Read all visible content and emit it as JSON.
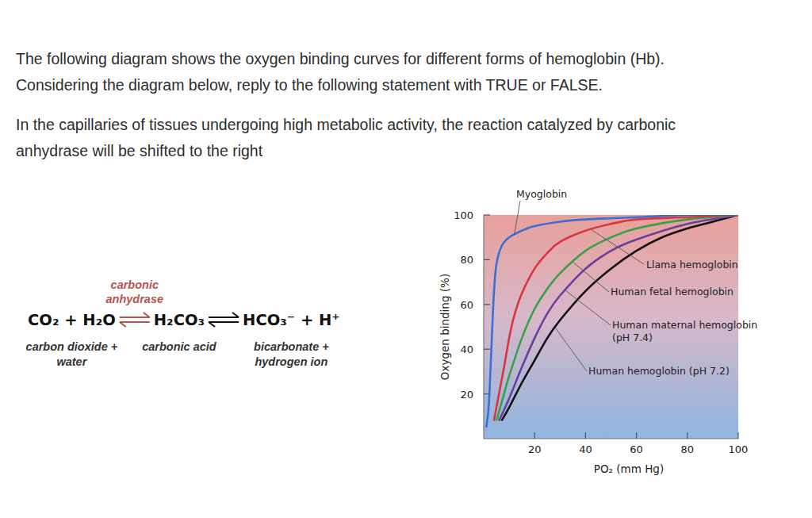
{
  "question": {
    "paragraphs": [
      [
        "The following diagram shows the oxygen binding curves for different forms of hemoglobin (Hb).",
        "Considering the diagram below, reply to the following statement with TRUE or FALSE."
      ],
      [
        "In the capillaries of tissues undergoing high metabolic activity, the reaction catalyzed by carbonic",
        "anhydrase will be shifted to the right"
      ]
    ]
  },
  "equation": {
    "enzyme_lines": [
      "carbonic",
      "anhydrase"
    ],
    "terms": [
      {
        "formula": "CO₂ + H₂O",
        "label_lines": [
          "carbon dioxide +",
          "water"
        ]
      },
      {
        "formula": "H₂CO₃",
        "label_lines": [
          "carbonic acid"
        ]
      },
      {
        "formula": "HCO₃⁻ + H⁺",
        "label_lines": [
          "bicarbonate +",
          "hydrogen ion"
        ]
      }
    ]
  },
  "chart_data": {
    "type": "line",
    "x_label": "PO₂ (mm Hg)",
    "y_label": "Oxygen binding (%)",
    "xlim": [
      0,
      100
    ],
    "ylim": [
      0,
      100
    ],
    "xticks": [
      20,
      40,
      60,
      80,
      100
    ],
    "yticks": [
      20,
      40,
      60,
      80,
      100
    ],
    "grid": false,
    "series": [
      {
        "name": "Myoglobin",
        "color": "#3b6fd4",
        "x": [
          1,
          2,
          3,
          4,
          5,
          7,
          10,
          15,
          20,
          30,
          40,
          60,
          80,
          100
        ],
        "values": [
          5,
          15,
          40,
          65,
          78,
          86,
          90,
          93,
          95,
          97,
          98,
          99,
          100,
          100
        ]
      },
      {
        "name": "Llama hemoglobin",
        "color": "#d9363e",
        "x": [
          4,
          6,
          8,
          10,
          12,
          15,
          20,
          25,
          30,
          40,
          50,
          60,
          80,
          100
        ],
        "values": [
          8,
          20,
          32,
          45,
          55,
          65,
          76,
          83,
          88,
          93,
          96,
          98,
          99,
          100
        ]
      },
      {
        "name": "Human fetal hemoglobin",
        "color": "#3aa04a",
        "x": [
          5,
          8,
          10,
          15,
          20,
          25,
          30,
          40,
          50,
          60,
          80,
          100
        ],
        "values": [
          8,
          20,
          28,
          45,
          58,
          67,
          74,
          84,
          90,
          94,
          98,
          100
        ]
      },
      {
        "name": "Human maternal hemoglobin (pH 7.4)",
        "color": "#6a3fa0",
        "x": [
          6,
          10,
          15,
          20,
          25,
          30,
          40,
          50,
          60,
          80,
          100
        ],
        "values": [
          8,
          18,
          32,
          45,
          56,
          64,
          76,
          84,
          89,
          96,
          100
        ]
      },
      {
        "name": "Human hemoglobin (pH 7.2)",
        "color": "#111111",
        "x": [
          7,
          10,
          15,
          20,
          25,
          30,
          40,
          50,
          60,
          70,
          80,
          90,
          100
        ],
        "values": [
          8,
          14,
          25,
          35,
          45,
          53,
          66,
          76,
          84,
          90,
          94,
          97,
          100
        ]
      }
    ]
  }
}
